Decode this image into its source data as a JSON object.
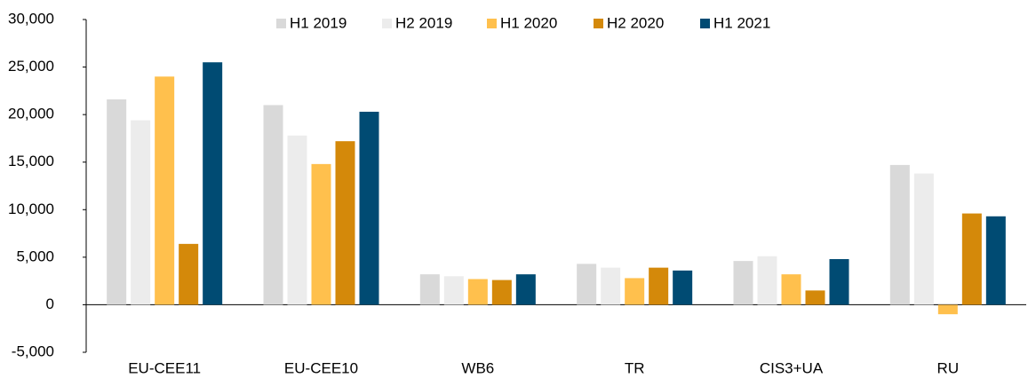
{
  "chart_data": {
    "type": "bar",
    "categories": [
      "EU-CEE11",
      "EU-CEE10",
      "WB6",
      "TR",
      "CIS3+UA",
      "RU"
    ],
    "series": [
      {
        "name": "H1 2019",
        "color": "#d9d9d9",
        "values": [
          21600,
          21000,
          3200,
          4300,
          4600,
          14700
        ]
      },
      {
        "name": "H2 2019",
        "color": "#ececec",
        "values": [
          19400,
          17800,
          3000,
          3900,
          5100,
          13800
        ]
      },
      {
        "name": "H1 2020",
        "color": "#ffc04d",
        "values": [
          24000,
          14800,
          2700,
          2800,
          3200,
          -1000
        ]
      },
      {
        "name": "H2 2020",
        "color": "#d4890a",
        "values": [
          6400,
          17200,
          2600,
          3900,
          1500,
          9600
        ]
      },
      {
        "name": "H1 2021",
        "color": "#004b73",
        "values": [
          25500,
          20300,
          3200,
          3600,
          4800,
          9300
        ]
      }
    ],
    "ylim": [
      -5000,
      30000
    ],
    "yticks": [
      {
        "value": -5000,
        "label": "-5,000"
      },
      0,
      {
        "value": 5000,
        "label": "5,000"
      },
      {
        "value": 10000,
        "label": "10,000"
      },
      {
        "value": 15000,
        "label": "15,000"
      },
      {
        "value": 20000,
        "label": "20,000"
      },
      {
        "value": 25000,
        "label": "25,000"
      },
      {
        "value": 30000,
        "label": "30,000"
      }
    ],
    "grid": false,
    "legend": "top"
  }
}
